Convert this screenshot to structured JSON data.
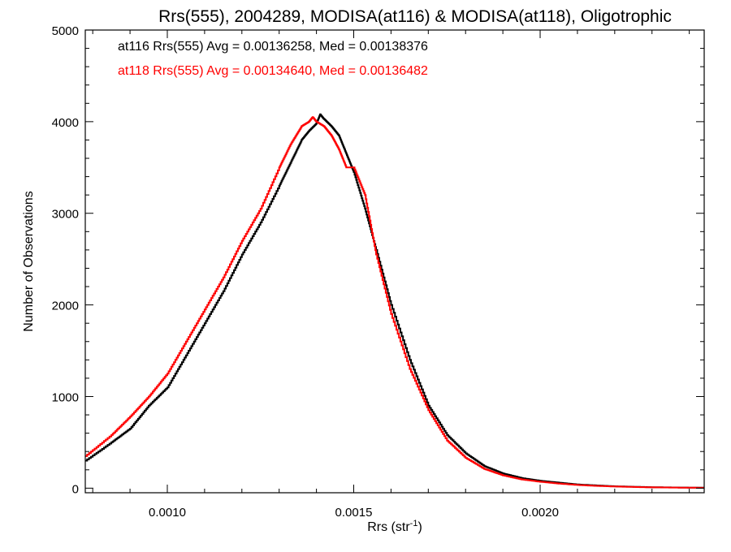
{
  "chart_data": {
    "type": "line",
    "title": "Rrs(555), 2004289, MODISA(at116) & MODISA(at118), Oligotrophic",
    "xlabel_main": "Rrs (str",
    "xlabel_sup": "-1",
    "xlabel_close": ")",
    "ylabel": "Number of Observations",
    "xlim": [
      0.00078,
      0.00244
    ],
    "ylim": [
      -50,
      5000
    ],
    "xticks": [
      0.001,
      0.0015,
      0.002
    ],
    "xtick_labels": [
      "0.0010",
      "0.0015",
      "0.0020"
    ],
    "yticks": [
      0,
      1000,
      2000,
      3000,
      4000,
      5000
    ],
    "ytick_labels": [
      "0",
      "1000",
      "2000",
      "3000",
      "4000",
      "5000"
    ],
    "grid": false,
    "legend_position": "top-left",
    "series": [
      {
        "name": "at116",
        "color": "#000000",
        "annotation": "at116 Rrs(555) Avg = 0.00136258, Med = 0.00138376",
        "x": [
          0.00078,
          0.00085,
          0.0009,
          0.00095,
          0.001,
          0.00105,
          0.0011,
          0.00115,
          0.0012,
          0.00125,
          0.0013,
          0.00133,
          0.00136,
          0.00138,
          0.0014,
          0.00141,
          0.00142,
          0.00144,
          0.00146,
          0.00148,
          0.0015,
          0.00153,
          0.00156,
          0.0016,
          0.00165,
          0.0017,
          0.00175,
          0.0018,
          0.00185,
          0.0019,
          0.00195,
          0.002,
          0.00205,
          0.0021,
          0.00215,
          0.0022,
          0.00225,
          0.0023,
          0.00235,
          0.0024,
          0.00244
        ],
        "y": [
          300,
          500,
          650,
          900,
          1100,
          1450,
          1800,
          2150,
          2550,
          2900,
          3300,
          3550,
          3800,
          3900,
          3980,
          4080,
          4030,
          3950,
          3850,
          3650,
          3450,
          3050,
          2600,
          2000,
          1400,
          900,
          580,
          380,
          240,
          160,
          110,
          80,
          60,
          40,
          30,
          20,
          15,
          10,
          8,
          6,
          5
        ]
      },
      {
        "name": "at118",
        "color": "#ff0000",
        "annotation": "at118 Rrs(555) Avg = 0.00134640, Med = 0.00136482",
        "x": [
          0.00078,
          0.00085,
          0.0009,
          0.00095,
          0.001,
          0.00105,
          0.0011,
          0.00115,
          0.0012,
          0.00125,
          0.0013,
          0.00133,
          0.00136,
          0.00138,
          0.00139,
          0.0014,
          0.00142,
          0.00144,
          0.00146,
          0.00148,
          0.0015,
          0.00153,
          0.00156,
          0.0016,
          0.00165,
          0.0017,
          0.00175,
          0.0018,
          0.00185,
          0.0019,
          0.00195,
          0.002,
          0.00205,
          0.0021,
          0.00215,
          0.0022,
          0.00225,
          0.0023,
          0.00235,
          0.0024,
          0.00244
        ],
        "y": [
          350,
          580,
          780,
          1000,
          1250,
          1600,
          1950,
          2300,
          2700,
          3050,
          3500,
          3750,
          3950,
          4000,
          4050,
          4000,
          3950,
          3850,
          3700,
          3500,
          3500,
          3200,
          2550,
          1900,
          1300,
          850,
          520,
          330,
          210,
          140,
          95,
          70,
          50,
          35,
          25,
          18,
          13,
          9,
          7,
          5,
          4
        ]
      }
    ]
  }
}
